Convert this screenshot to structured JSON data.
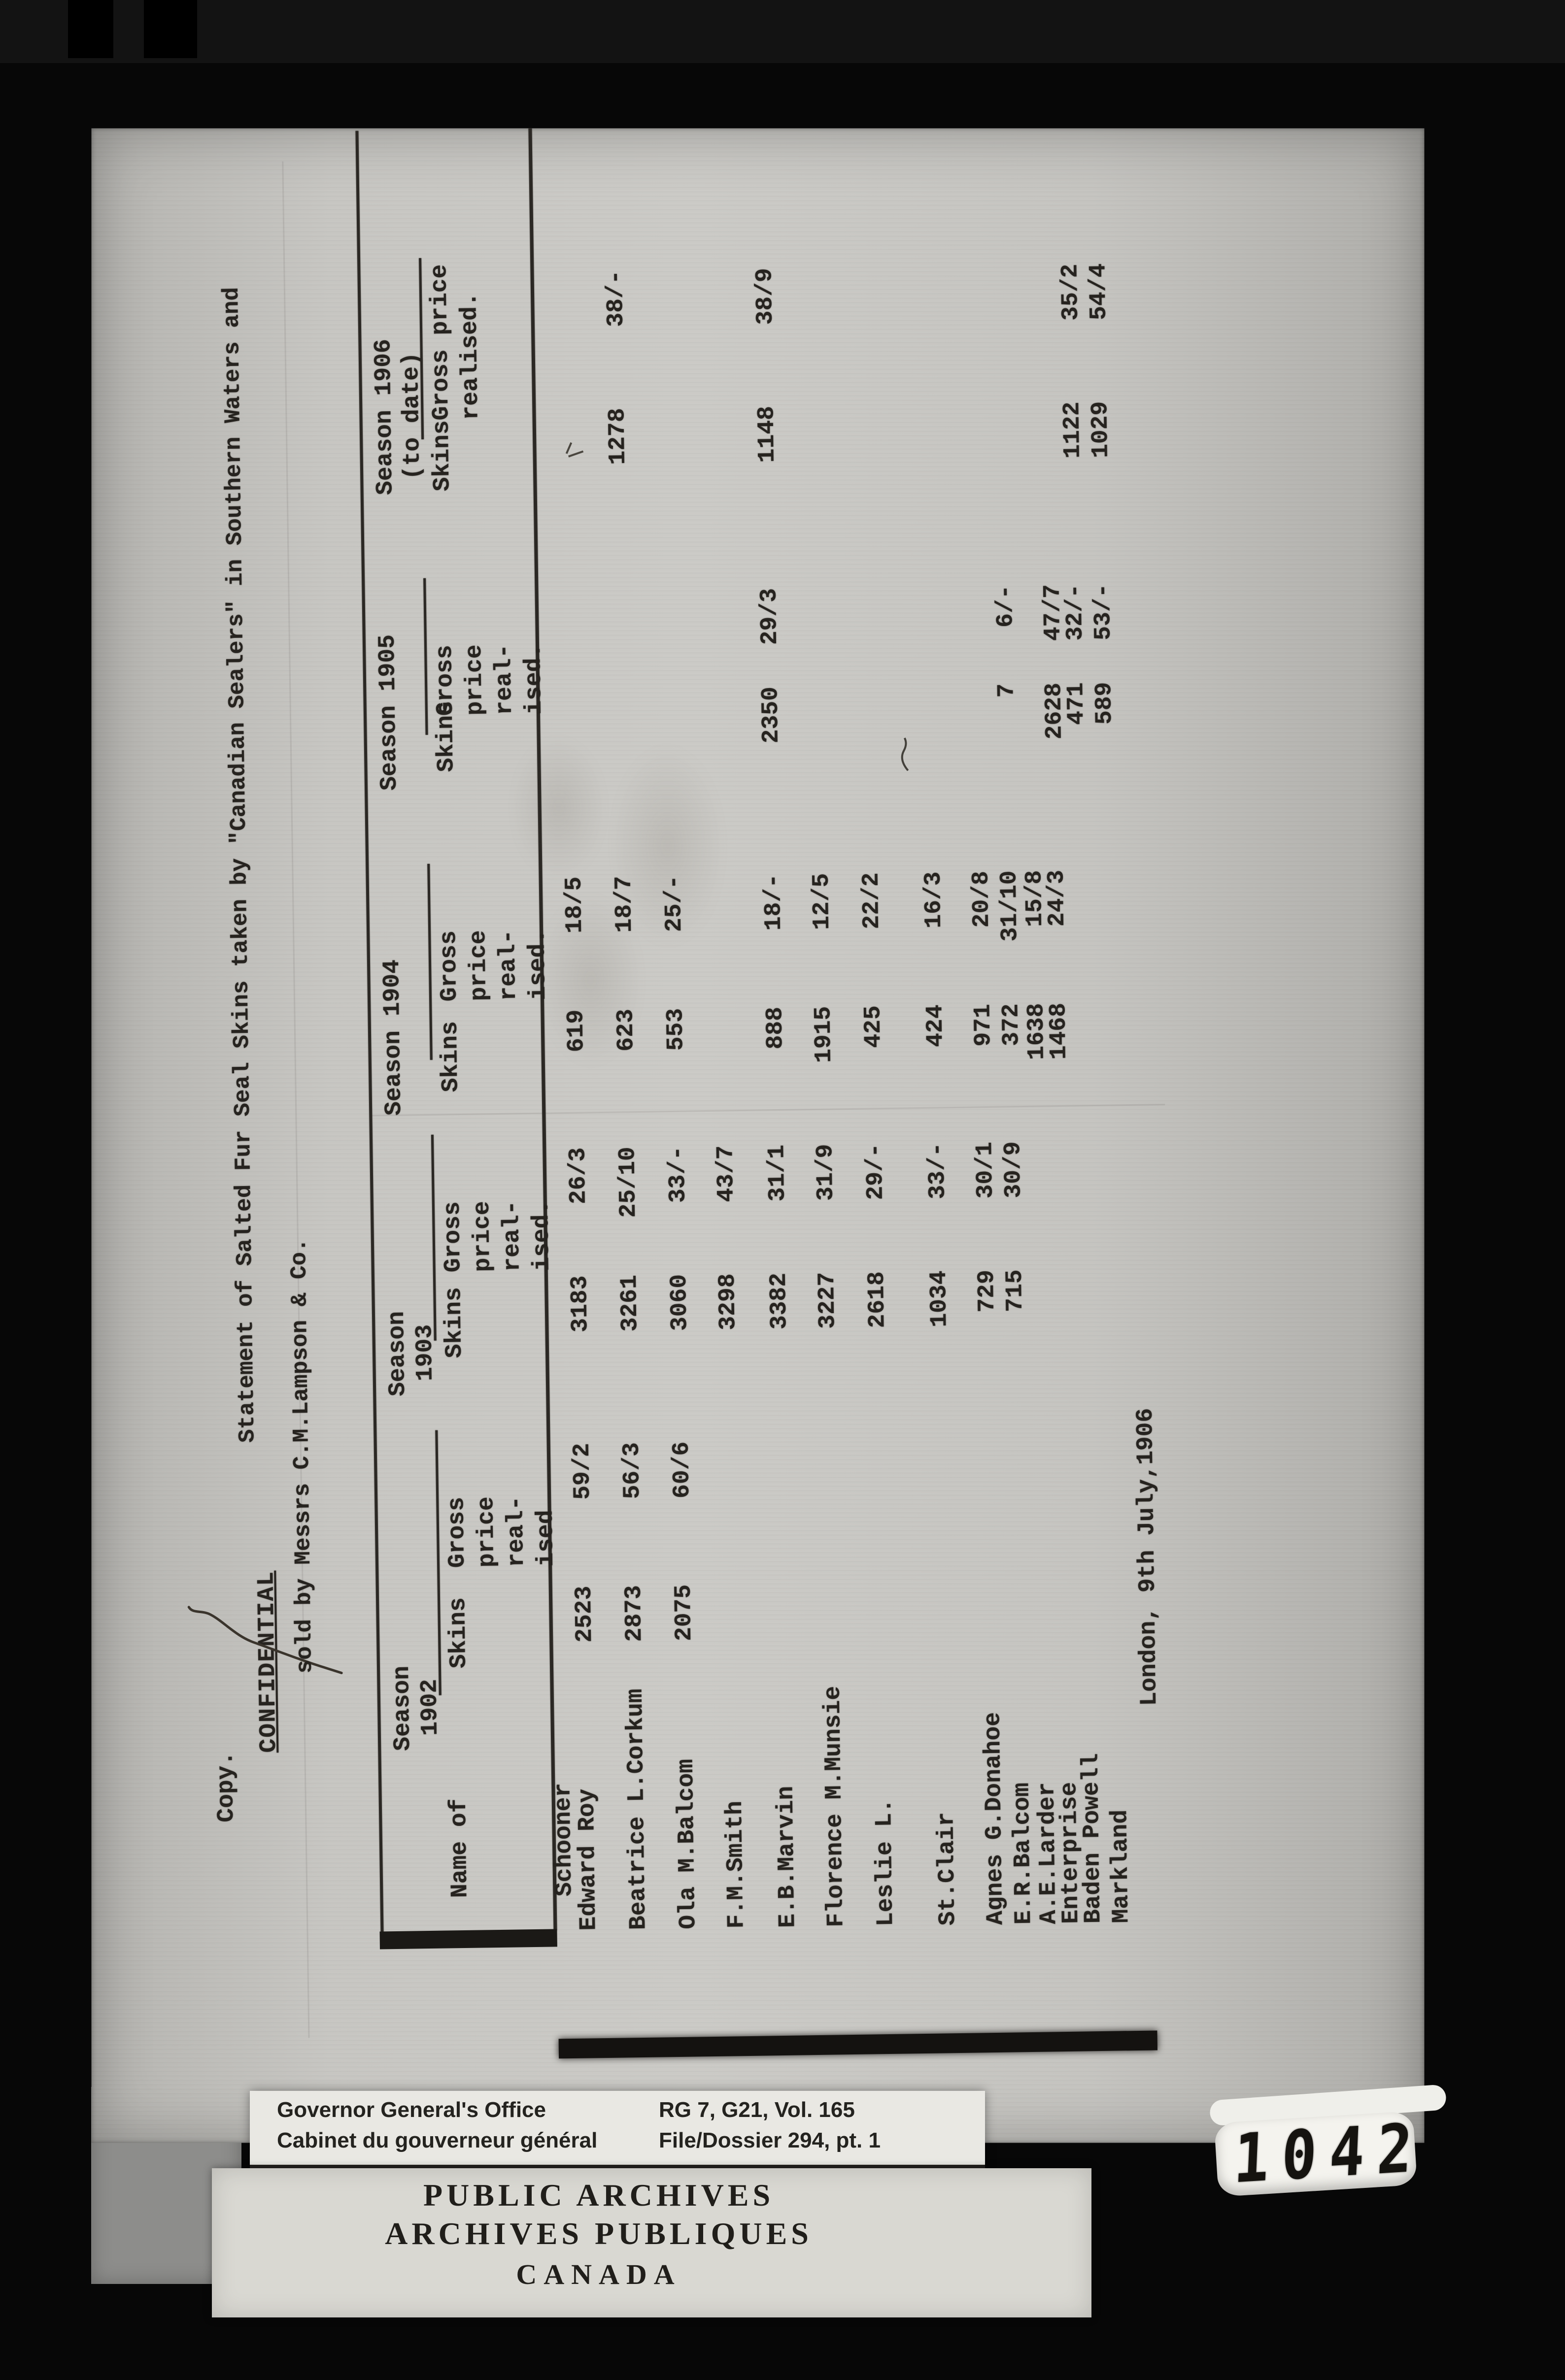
{
  "document": {
    "copy_label": "Copy.",
    "confidential": "CONFIDENTIAL",
    "title_line1": "Statement of Salted Fur Seal Skins taken by \"Canadian Sealers\" in Southern Waters and",
    "title_line2": "sold by Messrs C.M.Lampson & Co.",
    "dateline": "London, 9th July,1906"
  },
  "table": {
    "name_header": [
      "Name of",
      "Schooner"
    ],
    "seasons": [
      {
        "label": [
          "Season",
          "1902"
        ],
        "skins_header": "Skins",
        "gross_header": [
          "Gross",
          "price",
          "real-",
          "ised"
        ]
      },
      {
        "label": [
          "Season",
          "1903"
        ],
        "skins_header": "Skins",
        "gross_header": [
          "Gross",
          "price",
          "real-",
          "ised."
        ]
      },
      {
        "label": [
          "Season 1904"
        ],
        "skins_header": "Skins",
        "gross_header": [
          "Gross",
          "price",
          "real-",
          "ised."
        ]
      },
      {
        "label": [
          "Season 1905"
        ],
        "skins_header": "Skins",
        "gross_header": [
          "Gross",
          "price",
          "real-",
          "ised."
        ]
      },
      {
        "label": [
          "Season 1906",
          "(to date)"
        ],
        "skins_header": "Skins",
        "gross_header": [
          "Gross price",
          "realised."
        ]
      }
    ],
    "rows": [
      {
        "name": "Edward Roy",
        "values": [
          "2523",
          "59/2",
          "3183",
          "26/3",
          "619",
          "18/5",
          "",
          "",
          "",
          ""
        ]
      },
      {
        "name": "Beatrice L.Corkum",
        "values": [
          "2873",
          "56/3",
          "3261",
          "25/10",
          "623",
          "18/7",
          "",
          "",
          "1278",
          "38/-"
        ]
      },
      {
        "name": "Ola M.Balcom",
        "values": [
          "2075",
          "60/6",
          "3060",
          "33/-",
          "553",
          "25/-",
          "",
          "",
          "",
          ""
        ]
      },
      {
        "name": "F.M.Smith",
        "values": [
          "",
          "",
          "3298",
          "43/7",
          "",
          "",
          "",
          "",
          "",
          ""
        ]
      },
      {
        "name": "E.B.Marvin",
        "values": [
          "",
          "",
          "3382",
          "31/1",
          "888",
          "18/-",
          "2350",
          "29/3",
          "1148",
          "38/9"
        ]
      },
      {
        "name": "Florence M.Munsie",
        "values": [
          "",
          "",
          "3227",
          "31/9",
          "1915",
          "12/5",
          "",
          "",
          "",
          ""
        ]
      },
      {
        "name": "Leslie L.",
        "values": [
          "",
          "",
          "2618",
          "29/-",
          "425",
          "22/2",
          "",
          "",
          "",
          ""
        ]
      },
      {
        "name": "St.Clair",
        "values": [
          "",
          "",
          "1034",
          "33/-",
          "424",
          "16/3",
          "",
          "",
          "",
          ""
        ]
      },
      {
        "name": "Agnes G.Donahoe",
        "values": [
          "",
          "",
          "729",
          "30/1",
          "971",
          "20/8",
          "",
          "",
          "",
          ""
        ]
      },
      {
        "name": "E.R.Balcom",
        "values": [
          "",
          "",
          "715",
          "30/9",
          "372",
          "31/10",
          "7",
          "6/-",
          "",
          ""
        ]
      },
      {
        "name": "A.E.Larder",
        "values": [
          "",
          "",
          "",
          "",
          "1638",
          "15/8",
          "",
          "",
          "",
          ""
        ]
      },
      {
        "name": "Enterprise",
        "values": [
          "",
          "",
          "",
          "",
          "1468",
          "24/3",
          "2628",
          "47/7",
          "",
          ""
        ]
      },
      {
        "name": "Baden Powell",
        "values": [
          "",
          "",
          "",
          "",
          "",
          "",
          "471",
          "32/-",
          "1122",
          "35/2"
        ]
      },
      {
        "name": "Markland",
        "values": [
          "",
          "",
          "",
          "",
          "",
          "",
          "589",
          "53/-",
          "1029",
          "54/4"
        ]
      }
    ]
  },
  "archive_label": {
    "office_en": "Governor General's Office",
    "office_fr": "Cabinet du gouverneur général",
    "reference": "RG 7, G21, Vol. 165",
    "file": "File/Dossier 294, pt. 1"
  },
  "archives_stamp": {
    "line1": "PUBLIC ARCHIVES",
    "line2": "ARCHIVES PUBLIQUES",
    "line3": "CANADA"
  },
  "counter": {
    "value": "1042"
  }
}
